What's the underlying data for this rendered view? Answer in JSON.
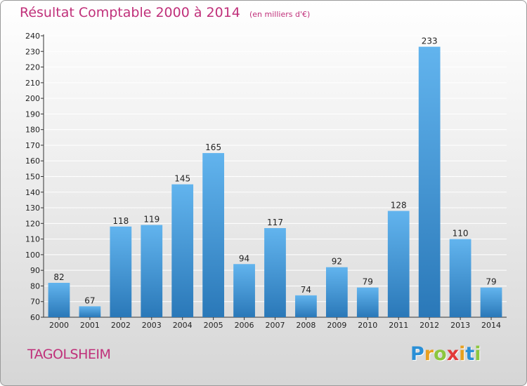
{
  "title": "Résultat Comptable 2000 à 2014",
  "unit_note": "(en milliers d'€)",
  "city": "TAGOLSHEIM",
  "logo": {
    "letters": [
      "P",
      "r",
      "o",
      "x",
      "i",
      "t",
      "i"
    ],
    "colors": [
      "#2a8fd6",
      "#e8a020",
      "#8cc63f",
      "#e23a3a",
      "#e8a020",
      "#2a8fd6",
      "#8cc63f"
    ]
  },
  "colors": {
    "bar_light": "#62b4ee",
    "bar_dark": "#2a78b8",
    "axis": "#333333",
    "grid": "#ffffff",
    "accent": "#c0307a"
  },
  "chart_data": {
    "type": "bar",
    "categories": [
      "2000",
      "2001",
      "2002",
      "2003",
      "2004",
      "2005",
      "2006",
      "2007",
      "2008",
      "2009",
      "2010",
      "2011",
      "2012",
      "2013",
      "2014"
    ],
    "values": [
      82,
      67,
      118,
      119,
      145,
      165,
      94,
      117,
      74,
      92,
      79,
      128,
      233,
      110,
      79
    ],
    "ylim": [
      60,
      240
    ],
    "ytick_step": 10,
    "grid": true,
    "data_labels": true
  }
}
